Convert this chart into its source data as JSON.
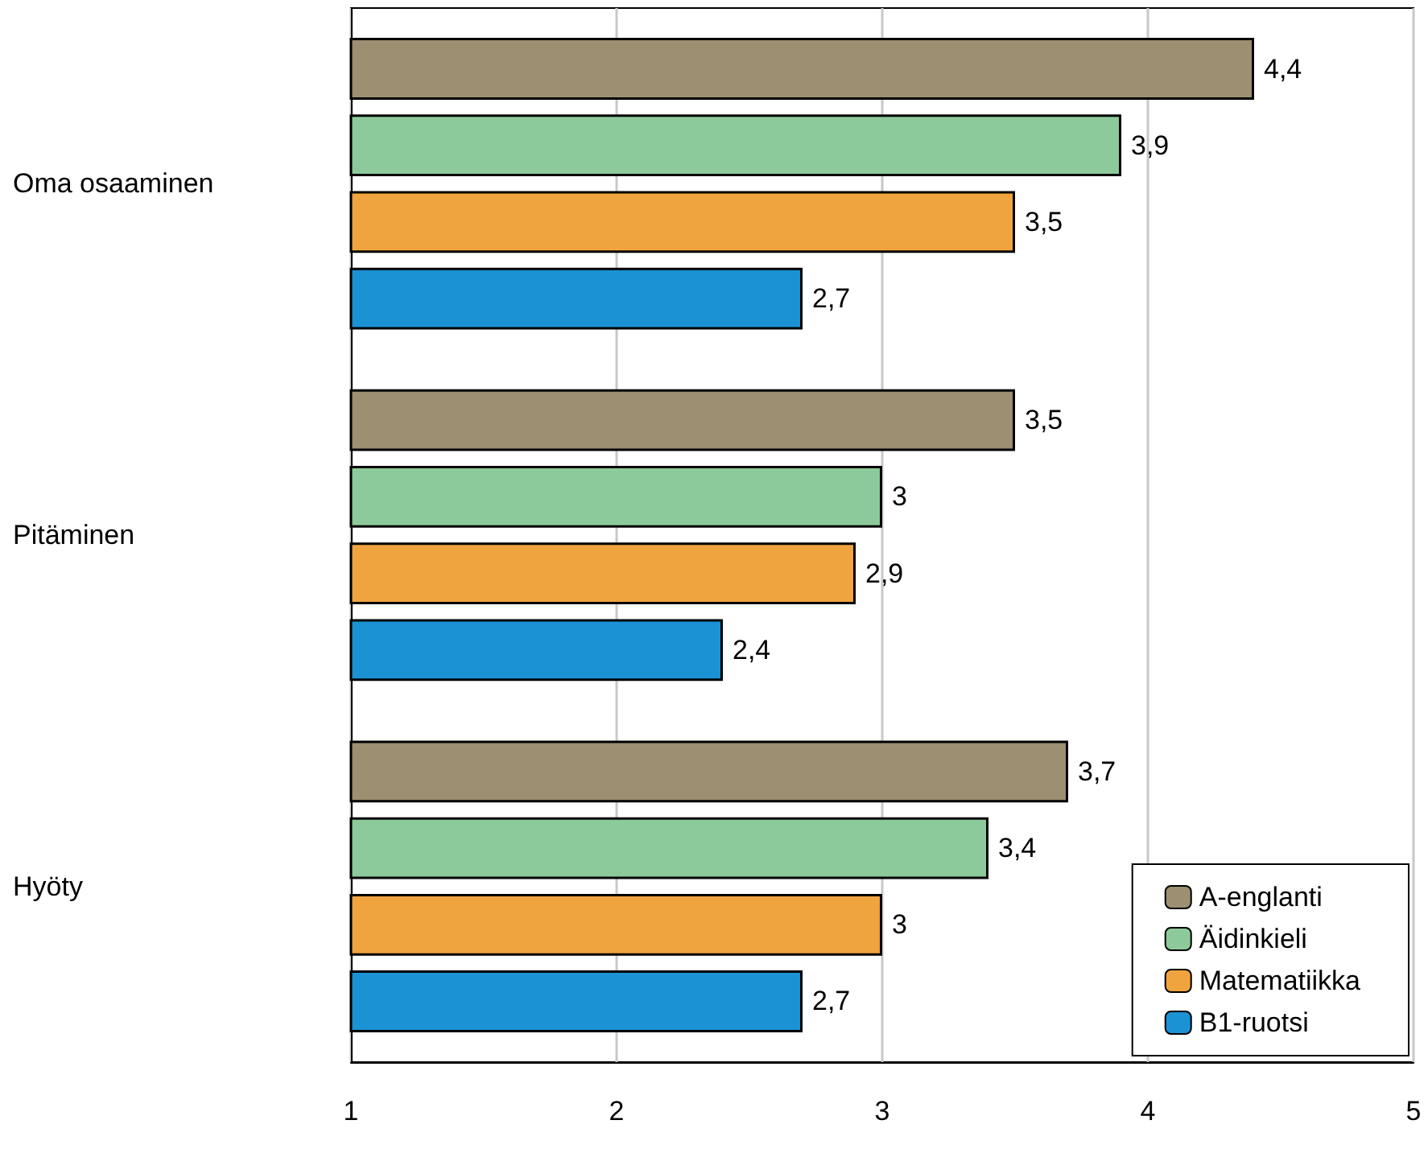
{
  "chart_data": {
    "type": "bar",
    "orientation": "horizontal",
    "categories": [
      "Oma osaaminen",
      "Pitäminen",
      "Hyöty"
    ],
    "series": [
      {
        "name": "A-englanti",
        "color": "#9c8f72",
        "values": [
          4.4,
          3.5,
          3.7
        ],
        "value_labels": [
          "4,4",
          "3,5",
          "3,7"
        ]
      },
      {
        "name": "Äidinkieli",
        "color": "#8dca9b",
        "values": [
          3.9,
          3,
          3.4
        ],
        "value_labels": [
          "3,9",
          "3",
          "3,4"
        ]
      },
      {
        "name": "Matematiikka",
        "color": "#f0a43f",
        "values": [
          3.5,
          2.9,
          3
        ],
        "value_labels": [
          "3,5",
          "2,9",
          "3"
        ]
      },
      {
        "name": "B1-ruotsi",
        "color": "#1b92d4",
        "values": [
          2.7,
          2.4,
          2.7
        ],
        "value_labels": [
          "2,7",
          "2,4",
          "2,7"
        ]
      }
    ],
    "xlim": [
      1,
      5
    ],
    "xticks": [
      1,
      2,
      3,
      4,
      5
    ],
    "grid": "x",
    "legend": "bottom right"
  }
}
